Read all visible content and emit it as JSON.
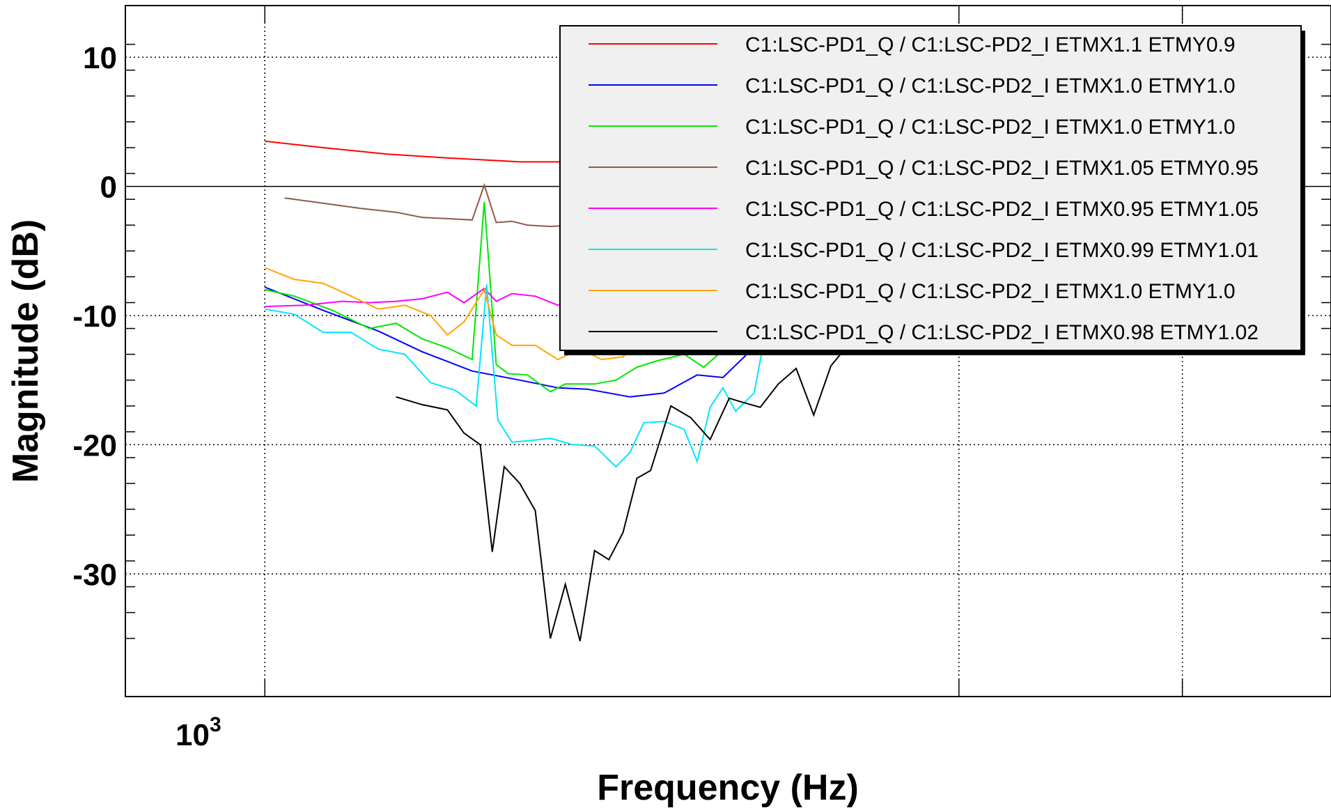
{
  "chart_data": {
    "type": "line",
    "xlabel": "Frequency (Hz)",
    "ylabel": "Magnitude (dB)",
    "x_scale": "log",
    "xlim": [
      870,
      2900
    ],
    "ylim": [
      -39.5,
      14
    ],
    "y_ticks": [
      "10",
      "0",
      "-10",
      "-20",
      "-30"
    ],
    "y_tick_values": [
      10,
      0,
      -10,
      -20,
      -30
    ],
    "x_tick_label": {
      "base": "10",
      "exponent": "3",
      "value": 1000
    },
    "x_major_gridlines": [
      1000,
      2000,
      2500,
      3000
    ],
    "grid": true,
    "legend_position": "top-right",
    "series": [
      {
        "name": "C1:LSC-PD1_Q / C1:LSC-PD2_I ETMX1.1 ETMY0.9",
        "color": "#ff0000",
        "x": [
          1000,
          1060,
          1130,
          1200,
          1260,
          1290,
          1340,
          1390,
          1460,
          1510,
          1540,
          1600,
          1640
        ],
        "y": [
          3.5,
          3.0,
          2.5,
          2.2,
          2.0,
          1.9,
          1.9,
          1.8,
          1.8,
          1.6,
          1.9,
          2.0,
          2.1
        ]
      },
      {
        "name": "C1:LSC-PD1_Q / C1:LSC-PD2_I ETMX1.0 ETMY1.0",
        "color": "#0000ff",
        "x": [
          1000,
          1060,
          1120,
          1170,
          1230,
          1290,
          1340,
          1380,
          1440,
          1490,
          1540,
          1580,
          1640
        ],
        "y": [
          -7.8,
          -9.6,
          -11.2,
          -12.8,
          -14.3,
          -15.0,
          -15.6,
          -15.7,
          -16.3,
          -16.0,
          -14.6,
          -14.8,
          -12.0
        ]
      },
      {
        "name": "C1:LSC-PD1_Q / C1:LSC-PD2_I ETMX1.0 ETMY1.0",
        "color": "#00e600",
        "x": [
          1000,
          1030,
          1070,
          1110,
          1140,
          1170,
          1200,
          1230,
          1245,
          1260,
          1275,
          1300,
          1330,
          1350,
          1390,
          1420,
          1450,
          1480,
          1520,
          1550,
          1580,
          1610,
          1640
        ],
        "y": [
          -8.0,
          -8.5,
          -9.6,
          -11.0,
          -10.6,
          -11.8,
          -12.5,
          -13.4,
          -1.2,
          -13.8,
          -14.5,
          -14.6,
          -15.9,
          -15.3,
          -15.3,
          -15.0,
          -14.0,
          -13.5,
          -13.0,
          -14.0,
          -12.7,
          -12.2,
          -11.8
        ]
      },
      {
        "name": "C1:LSC-PD1_Q / C1:LSC-PD2_I ETMX1.05 ETMY0.95",
        "color": "#8b5a4a",
        "x": [
          1020,
          1060,
          1100,
          1140,
          1170,
          1200,
          1230,
          1245,
          1260,
          1280,
          1300,
          1330,
          1360,
          1390,
          1420,
          1450,
          1480,
          1510,
          1540,
          1570,
          1600,
          1640
        ],
        "y": [
          -0.9,
          -1.3,
          -1.7,
          -2.0,
          -2.4,
          -2.5,
          -2.6,
          0.1,
          -2.8,
          -2.7,
          -3.0,
          -3.1,
          -3.0,
          -2.9,
          -2.8,
          -3.0,
          -2.9,
          -2.6,
          -2.8,
          -2.6,
          -3.7,
          -3.0
        ]
      },
      {
        "name": "C1:LSC-PD1_Q / C1:LSC-PD2_I ETMX0.95 ETMY1.05",
        "color": "#ff00ff",
        "x": [
          1000,
          1040,
          1080,
          1110,
          1140,
          1170,
          1200,
          1220,
          1245,
          1260,
          1280,
          1310,
          1340,
          1360,
          1380,
          1410,
          1440,
          1470,
          1500,
          1520,
          1550,
          1570,
          1600,
          1620,
          1640
        ],
        "y": [
          -9.3,
          -9.2,
          -8.9,
          -9.0,
          -8.9,
          -8.7,
          -8.2,
          -9.0,
          -7.9,
          -8.9,
          -8.3,
          -8.5,
          -9.2,
          -8.8,
          -9.5,
          -8.9,
          -8.6,
          -8.9,
          -8.9,
          -9.0,
          -8.7,
          -9.1,
          -6.3,
          -9.8,
          -10.0
        ]
      },
      {
        "name": "C1:LSC-PD1_Q / C1:LSC-PD2_I ETMX0.99 ETMY1.01",
        "color": "#00e5ff",
        "x": [
          1000,
          1030,
          1060,
          1090,
          1120,
          1150,
          1180,
          1210,
          1235,
          1248,
          1262,
          1280,
          1300,
          1330,
          1360,
          1390,
          1420,
          1440,
          1460,
          1490,
          1520,
          1540,
          1560,
          1580,
          1600,
          1630,
          1650
        ],
        "y": [
          -9.5,
          -9.9,
          -11.3,
          -11.3,
          -12.6,
          -13.0,
          -15.2,
          -15.8,
          -17.0,
          -7.6,
          -18.1,
          -19.8,
          -19.7,
          -19.5,
          -20.0,
          -20.1,
          -21.7,
          -20.6,
          -18.3,
          -18.2,
          -18.8,
          -21.3,
          -17.1,
          -15.6,
          -17.4,
          -16.0,
          -11.0
        ]
      },
      {
        "name": "C1:LSC-PD1_Q / C1:LSC-PD2_I ETMX1.0 ETMY1.0",
        "color": "#ffa500",
        "x": [
          1000,
          1030,
          1060,
          1090,
          1120,
          1150,
          1180,
          1200,
          1220,
          1245,
          1260,
          1280,
          1310,
          1340,
          1370,
          1400,
          1430,
          1460,
          1490,
          1520,
          1550,
          1580,
          1600,
          1640
        ],
        "y": [
          -6.3,
          -7.2,
          -7.5,
          -8.5,
          -9.5,
          -9.2,
          -10.0,
          -11.5,
          -10.5,
          -8.0,
          -11.5,
          -12.3,
          -12.3,
          -13.4,
          -12.6,
          -13.4,
          -13.2,
          -11.6,
          -12.5,
          -12.4,
          -12.1,
          -12.5,
          -12.0,
          -11.5
        ]
      },
      {
        "name": "C1:LSC-PD1_Q / C1:LSC-PD2_I ETMX0.98 ETMY1.02",
        "color": "#000000",
        "x": [
          1140,
          1170,
          1200,
          1220,
          1240,
          1255,
          1270,
          1290,
          1310,
          1330,
          1350,
          1370,
          1390,
          1410,
          1430,
          1450,
          1470,
          1500,
          1530,
          1560,
          1590,
          1610,
          1640,
          1670,
          1700,
          1730,
          1760,
          1790,
          1820
        ],
        "y": [
          -16.3,
          -16.9,
          -17.3,
          -19.1,
          -20.0,
          -28.3,
          -21.7,
          -23.0,
          -25.1,
          -35.0,
          -30.8,
          -35.2,
          -28.2,
          -28.9,
          -26.8,
          -22.6,
          -22.0,
          -17.0,
          -17.9,
          -19.6,
          -16.4,
          -16.7,
          -17.1,
          -15.3,
          -14.1,
          -17.7,
          -13.9,
          -12.3,
          -11.5
        ]
      }
    ]
  }
}
